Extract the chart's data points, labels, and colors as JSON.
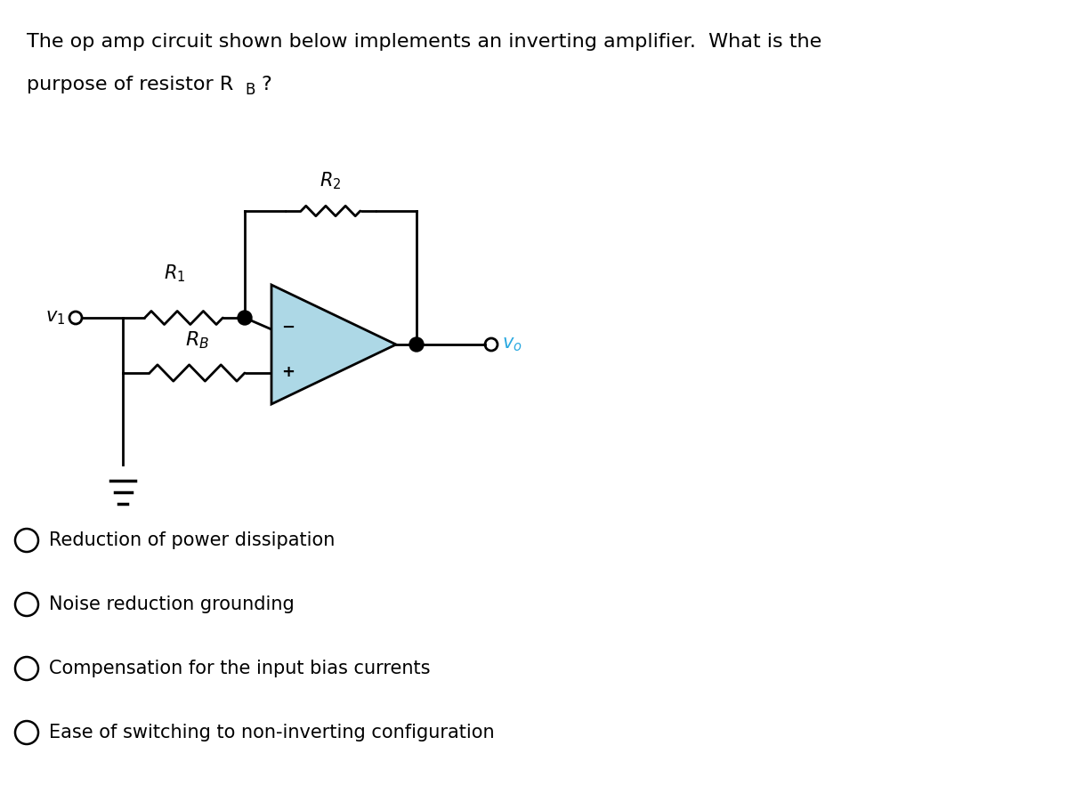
{
  "title_text": "The op amp circuit shown below implements an inverting amplifier.  What is the\npurpose of resistor RB?",
  "question_text_line1": "The op amp circuit shown below implements an inverting amplifier.  What is the",
  "question_text_line2": "purpose of resistor RB?",
  "choices": [
    "Reduction of power dissipation",
    "Noise reduction grounding",
    "Compensation for the input bias currents",
    "Ease of switching to non-inverting configuration"
  ],
  "bg_color": "#ffffff",
  "text_color": "#000000",
  "circuit_line_color": "#000000",
  "opamp_fill_color": "#add8e6",
  "opamp_edge_color": "#000000",
  "v1_label_color": "#000000",
  "vo_label_color": "#29a8e0",
  "font_size_question": 16,
  "font_size_labels": 14,
  "font_size_choices": 15
}
